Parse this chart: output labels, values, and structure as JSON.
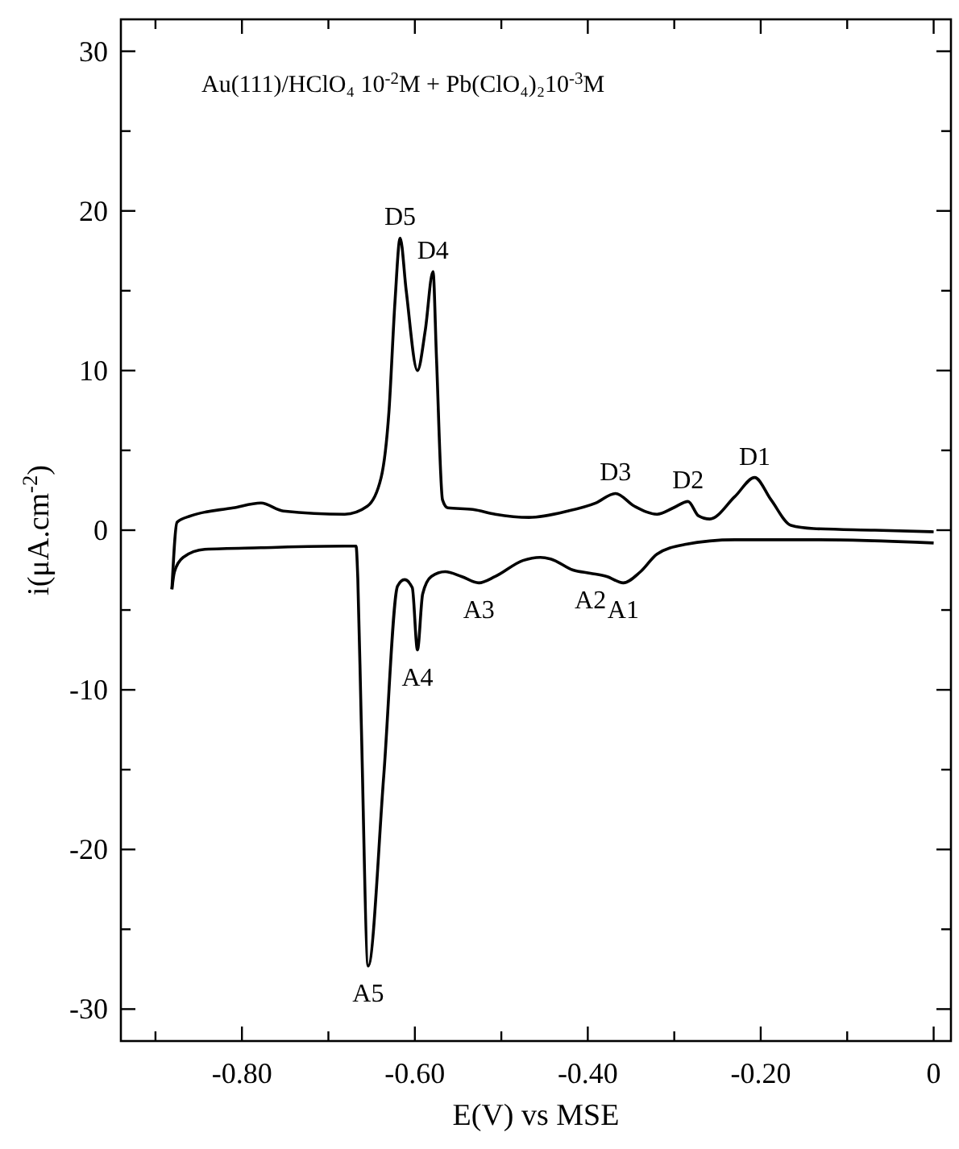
{
  "chart_data": {
    "type": "line",
    "title": "Au(111)/HClO₄ 10$^{-2}$M + Pb(ClO₄)₂10$^{-3}$M",
    "xlabel": "E(V) vs MSE",
    "ylabel": "i(μA.cm$^{-2}$)",
    "xlim": [
      -0.94,
      0.02
    ],
    "ylim": [
      -32,
      32
    ],
    "xticks": [
      {
        "value": -0.9,
        "label": null
      },
      {
        "value": -0.8,
        "label": "-0.80"
      },
      {
        "value": -0.7,
        "label": null
      },
      {
        "value": -0.6,
        "label": "-0.60"
      },
      {
        "value": -0.5,
        "label": null
      },
      {
        "value": -0.4,
        "label": "-0.40"
      },
      {
        "value": -0.3,
        "label": null
      },
      {
        "value": -0.2,
        "label": "-0.20"
      },
      {
        "value": -0.1,
        "label": null
      },
      0
    ],
    "yticks": [
      -30,
      {
        "value": -25,
        "label": null
      },
      -20,
      {
        "value": -15,
        "label": null
      },
      -10,
      {
        "value": -5,
        "label": null
      },
      0,
      {
        "value": 5,
        "label": null
      },
      10,
      {
        "value": 15,
        "label": null
      },
      20,
      {
        "value": 25,
        "label": null
      },
      30
    ],
    "grid": false,
    "marker": "none",
    "line_style": "solid",
    "series": [
      {
        "color": "#000000",
        "x": [
          -0.881,
          -0.875,
          -0.859,
          -0.81,
          -0.778,
          -0.752,
          -0.681,
          -0.655,
          -0.639,
          -0.63,
          -0.623,
          -0.617,
          -0.61,
          -0.597,
          -0.588,
          -0.579,
          -0.575,
          -0.568,
          -0.562,
          -0.533,
          -0.507,
          -0.468,
          -0.423,
          -0.391,
          -0.368,
          -0.346,
          -0.32,
          -0.301,
          -0.284,
          -0.272,
          -0.259,
          -0.23,
          -0.207,
          -0.188,
          -0.165,
          -0.139,
          -0.068,
          0
        ],
        "values": [
          -3.7,
          0.5,
          0.9,
          1.4,
          1.7,
          1.2,
          1.0,
          1.5,
          3.3,
          7.4,
          14.3,
          18.3,
          15,
          10,
          12.5,
          16.2,
          10.8,
          1.9,
          1.4,
          1.3,
          1.0,
          0.8,
          1.2,
          1.7,
          2.3,
          1.5,
          1.0,
          1.4,
          1.8,
          0.9,
          0.7,
          2.1,
          3.3,
          1.9,
          0.3,
          0.1,
          0,
          -0.1
        ]
      },
      {
        "color": "#000000",
        "x": [
          -0.881,
          -0.878,
          -0.868,
          -0.843,
          -0.778,
          -0.681,
          -0.668,
          -0.666,
          -0.662,
          -0.654,
          -0.636,
          -0.62,
          -0.612,
          -0.603,
          -0.597,
          -0.591,
          -0.581,
          -0.565,
          -0.546,
          -0.526,
          -0.507,
          -0.475,
          -0.455,
          -0.443,
          -0.417,
          -0.397,
          -0.378,
          -0.359,
          -0.339,
          -0.32,
          -0.288,
          -0.23,
          -0.133,
          0
        ],
        "values": [
          -3.7,
          -2.6,
          -1.7,
          -1.2,
          -1.1,
          -1.0,
          -1.0,
          -3,
          -12,
          -27.3,
          -15.4,
          -3.5,
          -3.1,
          -3.6,
          -7.5,
          -4.0,
          -2.9,
          -2.6,
          -2.9,
          -3.3,
          -2.9,
          -1.9,
          -1.7,
          -1.8,
          -2.5,
          -2.7,
          -2.9,
          -3.3,
          -2.6,
          -1.5,
          -0.9,
          -0.6,
          -0.6,
          -0.8
        ]
      }
    ],
    "annotations": [
      {
        "text": "D5",
        "x": -0.617,
        "y": 18.3
      },
      {
        "text": "D4",
        "x": -0.579,
        "y": 16.2
      },
      {
        "text": "D3",
        "x": -0.368,
        "y": 2.3
      },
      {
        "text": "D2",
        "x": -0.284,
        "y": 1.8
      },
      {
        "text": "D1",
        "x": -0.207,
        "y": 3.3
      },
      {
        "text": "A1",
        "x": -0.359,
        "y": -3.3
      },
      {
        "text": "A2",
        "x": -0.397,
        "y": -2.7
      },
      {
        "text": "A3",
        "x": -0.526,
        "y": -3.3
      },
      {
        "text": "A4",
        "x": -0.597,
        "y": -7.5
      },
      {
        "text": "A5",
        "x": -0.654,
        "y": -27.3
      }
    ]
  }
}
